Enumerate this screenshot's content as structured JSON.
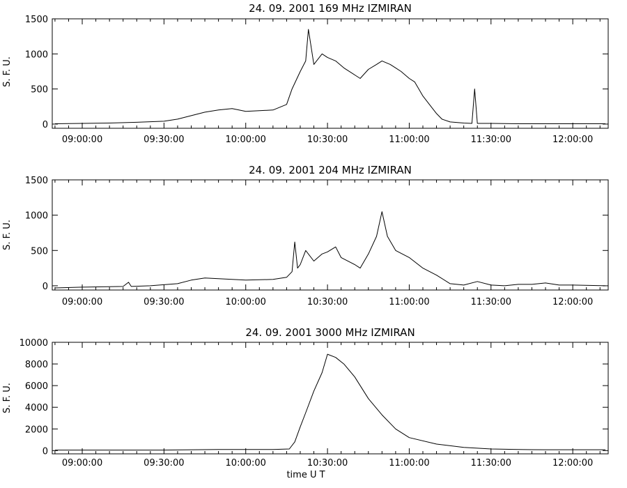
{
  "chart_data": [
    {
      "type": "line",
      "title": "24.  09.  2001    169  MHz    IZMIRAN",
      "ylabel": "S.  F.  U.",
      "xlabel": "",
      "x_ticks": [
        "09:00:00",
        "09:30:00",
        "10:00:00",
        "10:30:00",
        "11:00:00",
        "11:30:00",
        "12:00:00"
      ],
      "y_ticks": [
        0,
        500,
        1000,
        1500
      ],
      "xlim": [
        "08:49:00",
        "12:13:00"
      ],
      "ylim": [
        -60,
        1500
      ],
      "grid": false,
      "series": [
        {
          "x": [
            "08:50:00",
            "09:00:00",
            "09:10:00",
            "09:20:00",
            "09:30:00",
            "09:35:00",
            "09:40:00",
            "09:45:00",
            "09:50:00",
            "09:55:00",
            "10:00:00",
            "10:05:00",
            "10:10:00",
            "10:15:00",
            "10:17:00",
            "10:20:00",
            "10:22:00",
            "10:23:00",
            "10:25:00",
            "10:28:00",
            "10:30:00",
            "10:33:00",
            "10:36:00",
            "10:40:00",
            "10:42:00",
            "10:45:00",
            "10:48:00",
            "10:50:00",
            "10:53:00",
            "10:55:00",
            "10:57:00",
            "11:00:00",
            "11:02:00",
            "11:05:00",
            "11:08:00",
            "11:10:00",
            "11:12:00",
            "11:15:00",
            "11:20:00",
            "11:23:00",
            "11:24:00",
            "11:25:00",
            "11:30:00",
            "11:40:00",
            "11:50:00",
            "12:00:00",
            "12:12:00"
          ],
          "values": [
            5,
            10,
            15,
            25,
            40,
            70,
            120,
            170,
            200,
            220,
            180,
            190,
            200,
            280,
            500,
            750,
            900,
            1350,
            850,
            1000,
            950,
            900,
            800,
            700,
            650,
            780,
            850,
            900,
            850,
            800,
            750,
            650,
            600,
            400,
            250,
            150,
            70,
            30,
            15,
            10,
            500,
            10,
            10,
            5,
            5,
            5,
            5
          ]
        }
      ]
    },
    {
      "type": "line",
      "title": "24.  09.  2001    204  MHz    IZMIRAN",
      "ylabel": "S.  F.  U.",
      "xlabel": "",
      "x_ticks": [
        "09:00:00",
        "09:30:00",
        "10:00:00",
        "10:30:00",
        "11:00:00",
        "11:30:00",
        "12:00:00"
      ],
      "y_ticks": [
        0,
        500,
        1000,
        1500
      ],
      "xlim": [
        "08:49:00",
        "12:13:00"
      ],
      "ylim": [
        -60,
        1500
      ],
      "grid": false,
      "series": [
        {
          "x": [
            "08:50:00",
            "09:00:00",
            "09:15:00",
            "09:17:00",
            "09:18:00",
            "09:25:00",
            "09:35:00",
            "09:40:00",
            "09:45:00",
            "09:55:00",
            "10:00:00",
            "10:10:00",
            "10:15:00",
            "10:17:00",
            "10:18:00",
            "10:19:00",
            "10:20:00",
            "10:22:00",
            "10:25:00",
            "10:28:00",
            "10:30:00",
            "10:33:00",
            "10:35:00",
            "10:40:00",
            "10:42:00",
            "10:45:00",
            "10:48:00",
            "10:50:00",
            "10:52:00",
            "10:55:00",
            "11:00:00",
            "11:05:00",
            "11:10:00",
            "11:15:00",
            "11:20:00",
            "11:25:00",
            "11:30:00",
            "11:35:00",
            "11:40:00",
            "11:45:00",
            "11:50:00",
            "11:55:00",
            "12:00:00",
            "12:12:00"
          ],
          "values": [
            -30,
            -20,
            -10,
            50,
            -10,
            0,
            30,
            80,
            110,
            90,
            80,
            90,
            120,
            200,
            620,
            250,
            300,
            500,
            350,
            450,
            480,
            550,
            400,
            300,
            250,
            450,
            700,
            1050,
            700,
            500,
            400,
            250,
            150,
            30,
            10,
            60,
            10,
            0,
            20,
            20,
            40,
            10,
            10,
            0
          ]
        }
      ]
    },
    {
      "type": "line",
      "title": "24.  09.  2001    3000  MHz    IZMIRAN",
      "ylabel": "S.  F.  U.",
      "xlabel": "time    U  T",
      "x_ticks": [
        "09:00:00",
        "09:30:00",
        "10:00:00",
        "10:30:00",
        "11:00:00",
        "11:30:00",
        "12:00:00"
      ],
      "y_ticks": [
        0,
        2000,
        4000,
        6000,
        8000,
        10000
      ],
      "xlim": [
        "08:49:00",
        "12:13:00"
      ],
      "ylim": [
        -300,
        10000
      ],
      "grid": false,
      "series": [
        {
          "x": [
            "08:50:00",
            "09:30:00",
            "09:50:00",
            "10:10:00",
            "10:16:00",
            "10:18:00",
            "10:20:00",
            "10:22:00",
            "10:25:00",
            "10:28:00",
            "10:30:00",
            "10:33:00",
            "10:36:00",
            "10:40:00",
            "10:45:00",
            "10:50:00",
            "10:55:00",
            "11:00:00",
            "11:10:00",
            "11:20:00",
            "11:30:00",
            "11:40:00",
            "11:50:00",
            "12:00:00",
            "12:12:00"
          ],
          "values": [
            50,
            50,
            100,
            100,
            150,
            800,
            2200,
            3500,
            5500,
            7200,
            8900,
            8600,
            8000,
            6800,
            4800,
            3300,
            2000,
            1200,
            600,
            300,
            150,
            100,
            80,
            80,
            80
          ]
        }
      ]
    }
  ]
}
